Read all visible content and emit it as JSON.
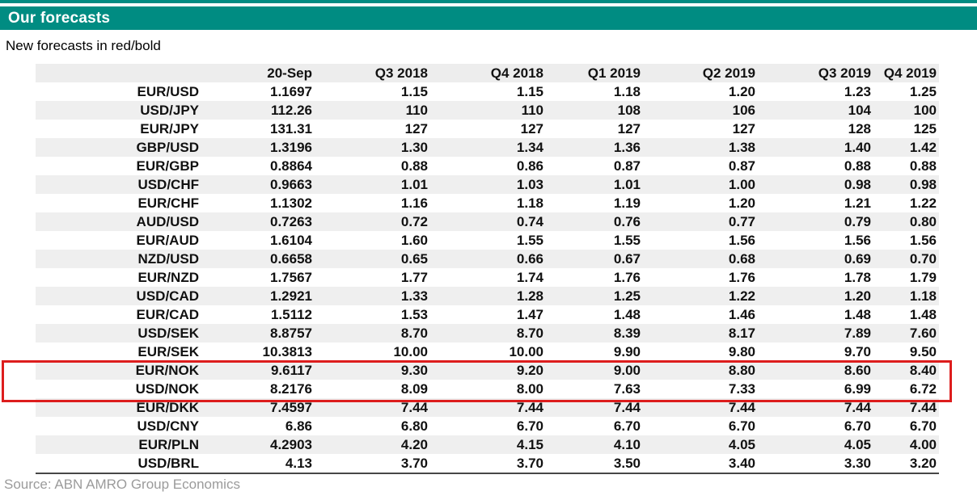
{
  "header": {
    "title": "Our forecasts"
  },
  "note": "New forecasts in red/bold",
  "source": "Source: ABN AMRO Group Economics",
  "colors": {
    "teal_accent": "#008c82",
    "highlight_red": "#dd1d1d",
    "row_stripe": "#efefef",
    "header_stripe": "#ededed",
    "source_gray": "#9b9b9b"
  },
  "table": {
    "columns": [
      "",
      "20-Sep",
      "Q3 2018",
      "Q4 2018",
      "Q1 2019",
      "Q2 2019",
      "Q3 2019",
      "Q4 2019"
    ],
    "highlight_note": "EUR/NOK and USD/NOK rows are outlined with a red box",
    "rows": [
      {
        "pair": "EUR/USD",
        "values": [
          "1.1697",
          "1.15",
          "1.15",
          "1.18",
          "1.20",
          "1.23",
          "1.25"
        ],
        "highlighted": false
      },
      {
        "pair": "USD/JPY",
        "values": [
          "112.26",
          "110",
          "110",
          "108",
          "106",
          "104",
          "100"
        ],
        "highlighted": false
      },
      {
        "pair": "EUR/JPY",
        "values": [
          "131.31",
          "127",
          "127",
          "127",
          "127",
          "128",
          "125"
        ],
        "highlighted": false
      },
      {
        "pair": "GBP/USD",
        "values": [
          "1.3196",
          "1.30",
          "1.34",
          "1.36",
          "1.38",
          "1.40",
          "1.42"
        ],
        "highlighted": false
      },
      {
        "pair": "EUR/GBP",
        "values": [
          "0.8864",
          "0.88",
          "0.86",
          "0.87",
          "0.87",
          "0.88",
          "0.88"
        ],
        "highlighted": false
      },
      {
        "pair": "USD/CHF",
        "values": [
          "0.9663",
          "1.01",
          "1.03",
          "1.01",
          "1.00",
          "0.98",
          "0.98"
        ],
        "highlighted": false
      },
      {
        "pair": "EUR/CHF",
        "values": [
          "1.1302",
          "1.16",
          "1.18",
          "1.19",
          "1.20",
          "1.21",
          "1.22"
        ],
        "highlighted": false
      },
      {
        "pair": "AUD/USD",
        "values": [
          "0.7263",
          "0.72",
          "0.74",
          "0.76",
          "0.77",
          "0.79",
          "0.80"
        ],
        "highlighted": false
      },
      {
        "pair": "EUR/AUD",
        "values": [
          "1.6104",
          "1.60",
          "1.55",
          "1.55",
          "1.56",
          "1.56",
          "1.56"
        ],
        "highlighted": false
      },
      {
        "pair": "NZD/USD",
        "values": [
          "0.6658",
          "0.65",
          "0.66",
          "0.67",
          "0.68",
          "0.69",
          "0.70"
        ],
        "highlighted": false
      },
      {
        "pair": "EUR/NZD",
        "values": [
          "1.7567",
          "1.77",
          "1.74",
          "1.76",
          "1.76",
          "1.78",
          "1.79"
        ],
        "highlighted": false
      },
      {
        "pair": "USD/CAD",
        "values": [
          "1.2921",
          "1.33",
          "1.28",
          "1.25",
          "1.22",
          "1.20",
          "1.18"
        ],
        "highlighted": false
      },
      {
        "pair": "EUR/CAD",
        "values": [
          "1.5112",
          "1.53",
          "1.47",
          "1.48",
          "1.46",
          "1.48",
          "1.48"
        ],
        "highlighted": false
      },
      {
        "pair": "USD/SEK",
        "values": [
          "8.8757",
          "8.70",
          "8.70",
          "8.39",
          "8.17",
          "7.89",
          "7.60"
        ],
        "highlighted": false
      },
      {
        "pair": "EUR/SEK",
        "values": [
          "10.3813",
          "10.00",
          "10.00",
          "9.90",
          "9.80",
          "9.70",
          "9.50"
        ],
        "highlighted": false
      },
      {
        "pair": "EUR/NOK",
        "values": [
          "9.6117",
          "9.30",
          "9.20",
          "9.00",
          "8.80",
          "8.60",
          "8.40"
        ],
        "highlighted": true
      },
      {
        "pair": "USD/NOK",
        "values": [
          "8.2176",
          "8.09",
          "8.00",
          "7.63",
          "7.33",
          "6.99",
          "6.72"
        ],
        "highlighted": true
      },
      {
        "pair": "EUR/DKK",
        "values": [
          "7.4597",
          "7.44",
          "7.44",
          "7.44",
          "7.44",
          "7.44",
          "7.44"
        ],
        "highlighted": false
      },
      {
        "pair": "USD/CNY",
        "values": [
          "6.86",
          "6.80",
          "6.70",
          "6.70",
          "6.70",
          "6.70",
          "6.70"
        ],
        "highlighted": false
      },
      {
        "pair": "EUR/PLN",
        "values": [
          "4.2903",
          "4.20",
          "4.15",
          "4.10",
          "4.05",
          "4.05",
          "4.00"
        ],
        "highlighted": false
      },
      {
        "pair": "USD/BRL",
        "values": [
          "4.13",
          "3.70",
          "3.70",
          "3.50",
          "3.40",
          "3.30",
          "3.20"
        ],
        "highlighted": false
      }
    ]
  }
}
